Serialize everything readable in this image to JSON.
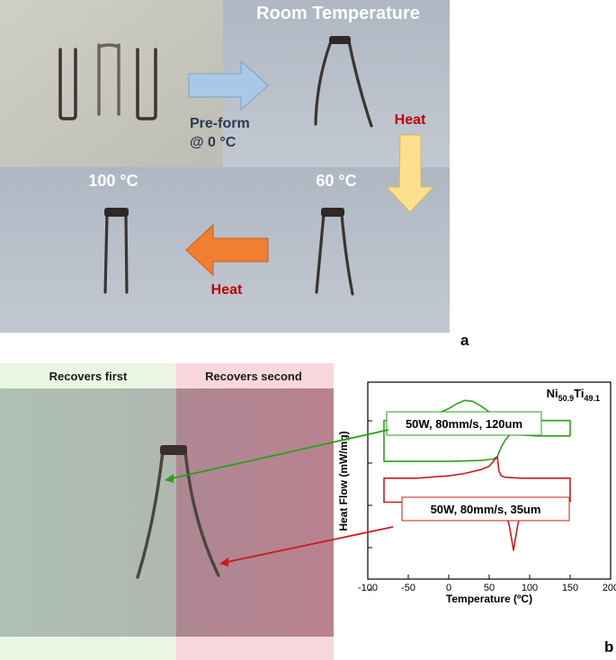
{
  "panel_a": {
    "label": "a",
    "photos": {
      "preform_caption_line1": "Pre-form",
      "preform_caption_line2": "@ 0 °C",
      "room_temperature_label": "Room Temperature",
      "heat_label_vertical": "Heat",
      "temp_60_label": "60 °C",
      "temp_100_label": "100 °C",
      "heat_label_horizontal": "Heat"
    },
    "colors": {
      "preform_bg": "#c8c8be",
      "photo_bg": "#b4bcc8",
      "arrow_blue": "#a9c8e8",
      "arrow_yellow": "#fde08e",
      "arrow_orange": "#f07f32",
      "heat_text": "#c00000"
    }
  },
  "panel_b": {
    "label": "b",
    "recovers_first": "Recovers first",
    "recovers_second": "Recovers second",
    "colors": {
      "first_band": "#eaf5e4",
      "second_band": "#f8d8dc",
      "green_line": "#2e9e1e",
      "red_line": "#cc1a1a"
    }
  },
  "chart_data": {
    "type": "line",
    "title": "Ni50.9Ti49.1",
    "title_parts": {
      "element1": "Ni",
      "sub1": "50.9",
      "element2": "Ti",
      "sub2": "49.1"
    },
    "xlabel": "Temperature (ºC)",
    "ylabel": "Heat Flow (mW/mg)",
    "xlim": [
      -100,
      200
    ],
    "xticks": [
      -100,
      -50,
      0,
      50,
      100,
      150,
      200
    ],
    "yticks_count": 5,
    "grid": false,
    "series": [
      {
        "name": "50W, 80mm/s, 120um",
        "color": "#2e9e1e",
        "upper_x": [
          -80,
          -60,
          -40,
          -20,
          0,
          10,
          20,
          30,
          40,
          50,
          60,
          70,
          80,
          100,
          120,
          150
        ],
        "upper_y": [
          2.1,
          2.1,
          2.13,
          2.2,
          2.35,
          2.45,
          2.52,
          2.5,
          2.4,
          2.28,
          2.2,
          2.16,
          2.13,
          2.1,
          2.1,
          2.1
        ],
        "lower_x": [
          -80,
          -40,
          0,
          40,
          55,
          60,
          65,
          70,
          75,
          80,
          90,
          110,
          150
        ],
        "lower_y": [
          1.25,
          1.25,
          1.25,
          1.27,
          1.3,
          1.35,
          1.55,
          1.7,
          1.8,
          1.82,
          1.8,
          1.78,
          1.78
        ]
      },
      {
        "name": "50W, 80mm/s, 35um",
        "color": "#cc1a1a",
        "upper_x": [
          -80,
          -40,
          0,
          20,
          40,
          50,
          55,
          60,
          62,
          65,
          70,
          90,
          120,
          150
        ],
        "upper_y": [
          0.9,
          0.9,
          0.95,
          1.0,
          1.08,
          1.15,
          1.25,
          1.35,
          1.05,
          0.95,
          0.92,
          0.9,
          0.9,
          0.9
        ],
        "lower_x": [
          -80,
          -40,
          0,
          40,
          60,
          70,
          75,
          80,
          85,
          90,
          100,
          120,
          150
        ],
        "lower_y": [
          0.4,
          0.4,
          0.42,
          0.4,
          0.35,
          0.2,
          -0.1,
          -0.6,
          -0.1,
          0.3,
          0.4,
          0.42,
          0.42
        ]
      }
    ]
  }
}
